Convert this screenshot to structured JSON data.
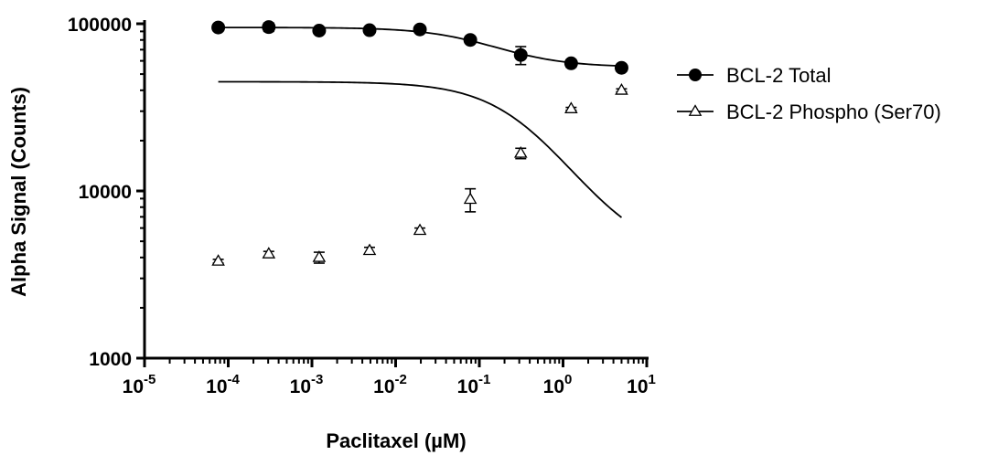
{
  "chart_data": {
    "type": "scatter",
    "xlabel": "Paclitaxel (µM)",
    "ylabel": "Alpha Signal (Counts)",
    "xscale": "log",
    "yscale": "log",
    "xlim": [
      1e-05,
      10
    ],
    "ylim": [
      1000,
      100000
    ],
    "x_ticks": [
      {
        "value": 1e-05,
        "base": "10",
        "exp": "-5"
      },
      {
        "value": 0.0001,
        "base": "10",
        "exp": "-4"
      },
      {
        "value": 0.001,
        "base": "10",
        "exp": "-3"
      },
      {
        "value": 0.01,
        "base": "10",
        "exp": "-2"
      },
      {
        "value": 0.1,
        "base": "10",
        "exp": "-1"
      },
      {
        "value": 1,
        "base": "10",
        "exp": "0"
      },
      {
        "value": 10,
        "base": "10",
        "exp": "1"
      }
    ],
    "y_ticks": [
      {
        "value": 1000,
        "label": "1000"
      },
      {
        "value": 10000,
        "label": "10000"
      },
      {
        "value": 100000,
        "label": "100000"
      }
    ],
    "grid": false,
    "legend_position": "right",
    "series": [
      {
        "name": "BCL-2 Total",
        "marker": "filled-circle",
        "color": "#000000",
        "x": [
          7.6e-05,
          0.000305,
          0.00122,
          0.00488,
          0.0195,
          0.078,
          0.3125,
          1.25,
          5
        ],
        "y": [
          95000,
          95500,
          91000,
          91500,
          92500,
          80000,
          65000,
          58000,
          54500
        ],
        "err": [
          2500,
          5500,
          3000,
          2500,
          3000,
          3000,
          8000,
          3000,
          2500
        ],
        "fit": {
          "bottom": 55000,
          "top": 95000,
          "ec50": 0.12,
          "hill": 1.0
        }
      },
      {
        "name": "BCL-2 Phospho (Ser70)",
        "marker": "open-triangle",
        "color": "#000000",
        "x": [
          7.6e-05,
          0.000305,
          0.00122,
          0.00488,
          0.0195,
          0.078,
          0.3125,
          1.25,
          5
        ],
        "y": [
          3800,
          4200,
          4000,
          4400,
          5800,
          8900,
          16800,
          31000,
          40000
        ],
        "err": [
          100,
          150,
          300,
          200,
          200,
          1400,
          1200,
          600,
          800
        ],
        "fit": {
          "bottom": 3900,
          "top": 45000,
          "ec50": 0.35,
          "hill": 0.95
        }
      }
    ]
  }
}
